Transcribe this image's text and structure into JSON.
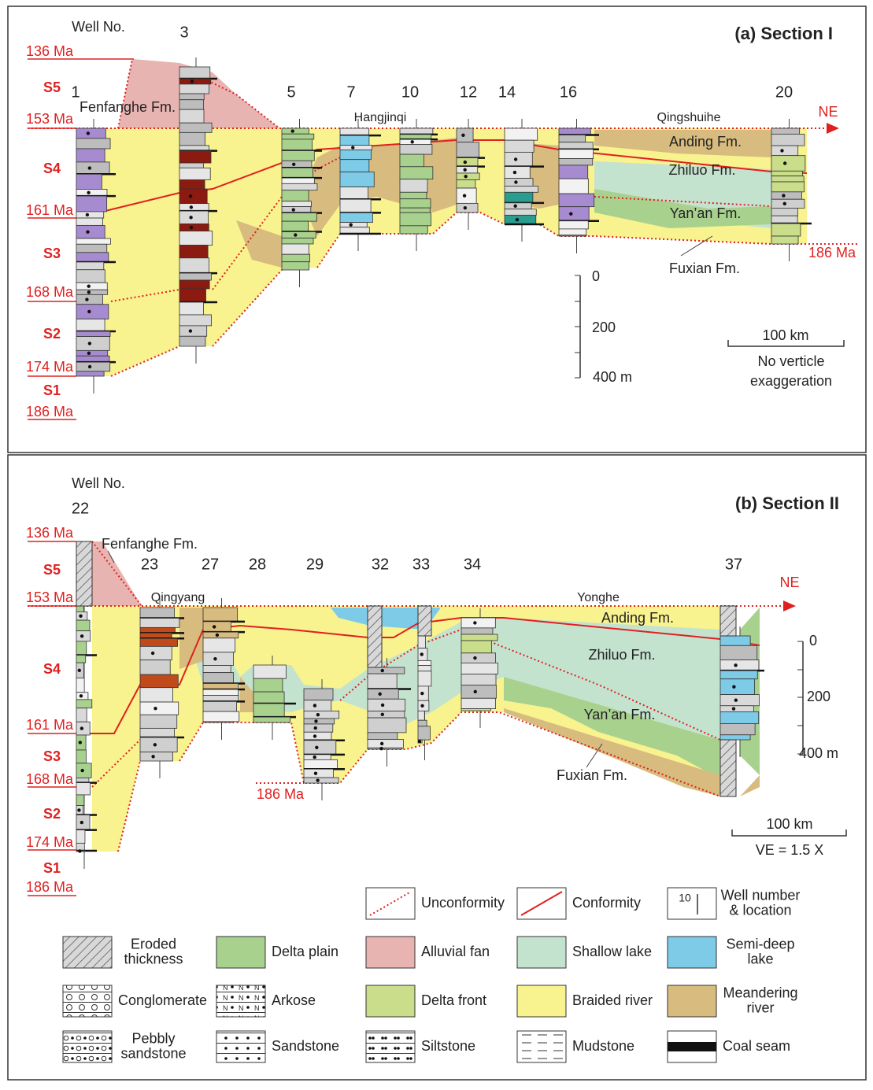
{
  "section_a": {
    "title": "(a) Section I",
    "well_no_label": "Well No.",
    "wells": [
      "1",
      "3",
      "5",
      "7",
      "10",
      "12",
      "14",
      "16",
      "20"
    ],
    "ages": [
      "136 Ma",
      "153 Ma",
      "161 Ma",
      "168 Ma",
      "174 Ma",
      "186 Ma"
    ],
    "sequences": [
      "S5",
      "S4",
      "S3",
      "S2",
      "S1"
    ],
    "places": [
      "Fenfanghe Fm.",
      "Hangjinqi",
      "Qingshuihe"
    ],
    "direction": "NE",
    "formations": [
      "Anding Fm.",
      "Zhiluo Fm.",
      "Yan’an Fm.",
      "Fuxian Fm."
    ],
    "base_age": "186 Ma",
    "vertical_scale": [
      "0",
      "200",
      "400 m"
    ],
    "horizontal_scale": "100 km",
    "scale_note": [
      "No verticle",
      "exaggeration"
    ]
  },
  "section_b": {
    "title": "(b) Section II",
    "well_no_label": "Well No.",
    "wells": [
      "22",
      "23",
      "27",
      "28",
      "29",
      "32",
      "33",
      "34",
      "37"
    ],
    "ages": [
      "136 Ma",
      "153 Ma",
      "161 Ma",
      "168 Ma",
      "174 Ma",
      "186 Ma"
    ],
    "sequences": [
      "S5",
      "S4",
      "S3",
      "S2",
      "S1"
    ],
    "places": [
      "Fenfanghe Fm.",
      "Qingyang",
      "Yonghe"
    ],
    "direction": "NE",
    "formations": [
      "Anding Fm.",
      "Zhiluo Fm.",
      "Yan’an Fm.",
      "Fuxian Fm."
    ],
    "base_age": "186 Ma",
    "vertical_scale": [
      "0",
      "200",
      "400 m"
    ],
    "horizontal_scale": "100 km",
    "scale_note": [
      "VE = 1.5 X"
    ]
  },
  "legend": {
    "well_example": "10",
    "items": [
      {
        "label": [
          "Unconformity"
        ]
      },
      {
        "label": [
          "Conformity"
        ]
      },
      {
        "label": [
          "Well number",
          "& location"
        ]
      },
      {
        "label": [
          "Eroded",
          "thickness"
        ]
      },
      {
        "label": [
          "Delta plain"
        ]
      },
      {
        "label": [
          "Alluvial fan"
        ]
      },
      {
        "label": [
          "Shallow lake"
        ]
      },
      {
        "label": [
          "Semi-deep",
          "lake"
        ]
      },
      {
        "label": [
          "Conglomerate"
        ]
      },
      {
        "label": [
          "Arkose"
        ]
      },
      {
        "label": [
          "Delta front"
        ]
      },
      {
        "label": [
          "Braided river"
        ]
      },
      {
        "label": [
          "Meandering",
          "river"
        ]
      },
      {
        "label": [
          "Pebbly",
          "sandstone"
        ]
      },
      {
        "label": [
          "Sandstone"
        ]
      },
      {
        "label": [
          "Siltstone"
        ]
      },
      {
        "label": [
          "Mudstone"
        ]
      },
      {
        "label": [
          "Coal seam"
        ]
      }
    ]
  }
}
